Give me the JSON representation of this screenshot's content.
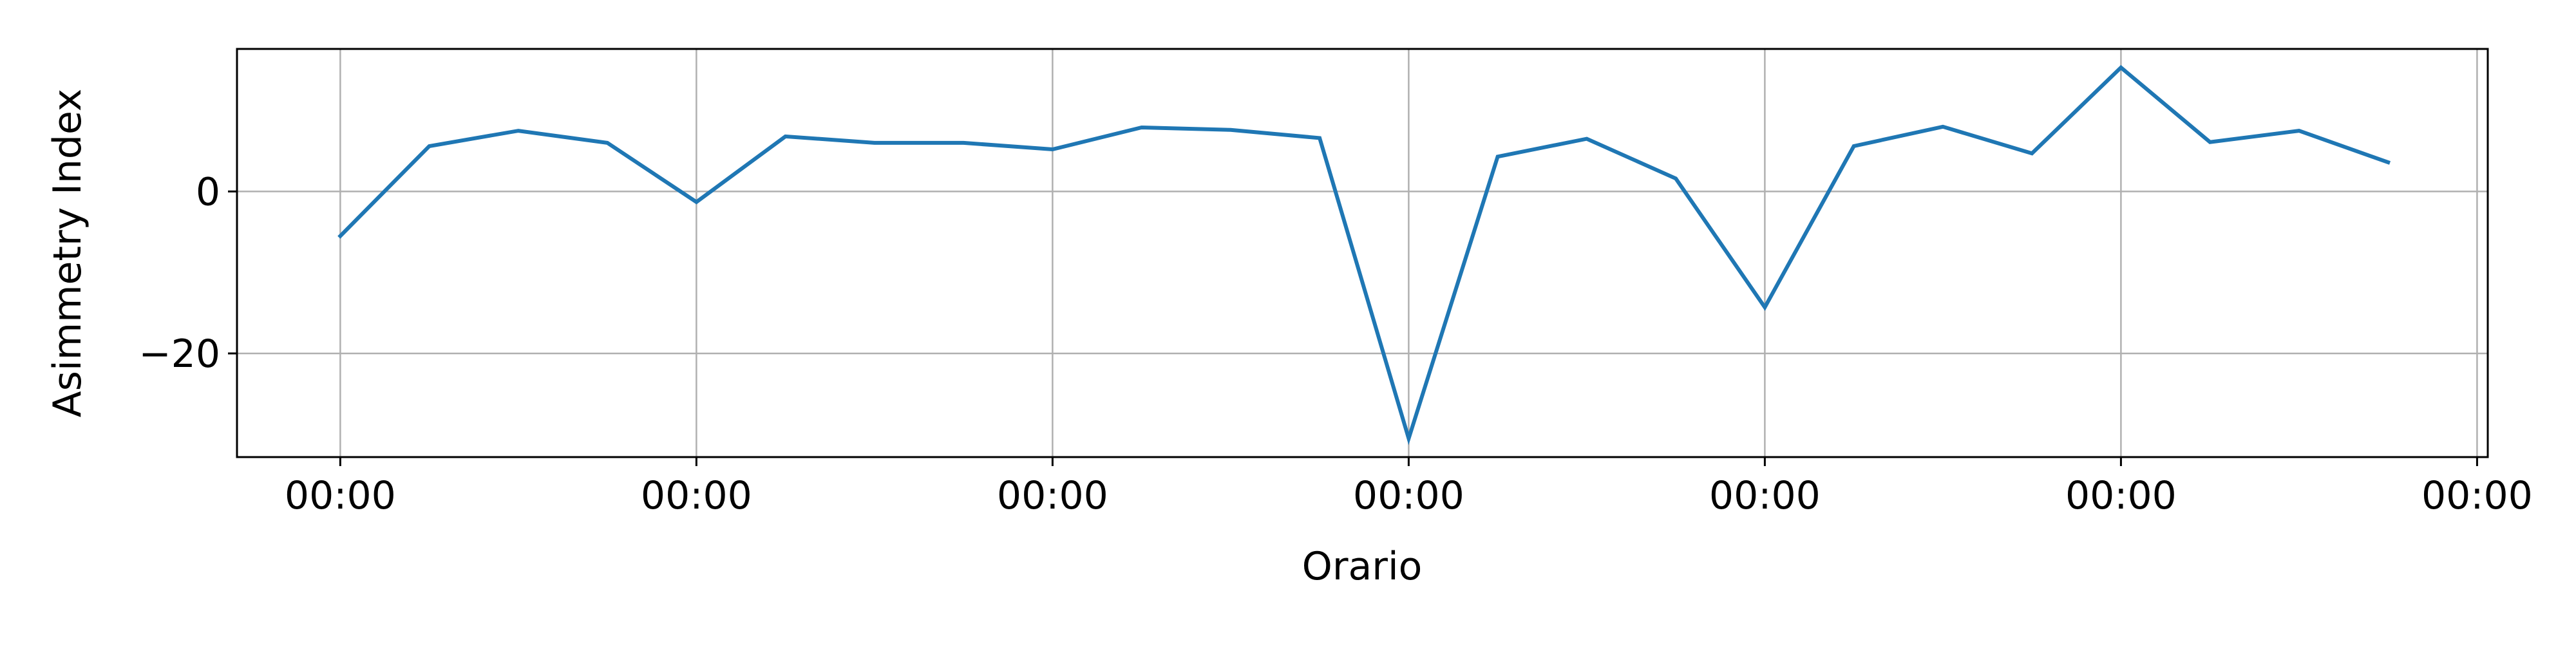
{
  "chart_data": {
    "type": "line",
    "xlabel": "Orario",
    "ylabel": "Asimmetry Index",
    "x_tick_labels": [
      "00:00",
      "00:00",
      "00:00",
      "00:00",
      "00:00",
      "00:00",
      "00:00"
    ],
    "y_tick_labels": [
      "0",
      "−20"
    ],
    "y_ticks": [
      0,
      -20
    ],
    "ylim": [
      -32.8,
      17.6
    ],
    "xlim": [
      -0.29,
      6.03
    ],
    "grid": true,
    "series": [
      {
        "color": "#1f77b4",
        "x": [
          0.0,
          0.25,
          0.5,
          0.75,
          1.0,
          1.25,
          1.5,
          1.75,
          2.0,
          2.25,
          2.5,
          2.75,
          3.0,
          3.25,
          3.5,
          3.75,
          4.0,
          4.25,
          4.5,
          4.75,
          5.0,
          5.25,
          5.5,
          5.75
        ],
        "values": [
          -5.5,
          5.6,
          7.5,
          6.0,
          -1.3,
          6.8,
          6.0,
          6.0,
          5.2,
          7.9,
          7.6,
          6.6,
          -30.5,
          4.3,
          6.5,
          1.6,
          -14.3,
          5.6,
          8.0,
          4.7,
          15.3,
          6.1,
          7.5,
          3.6
        ]
      }
    ]
  }
}
